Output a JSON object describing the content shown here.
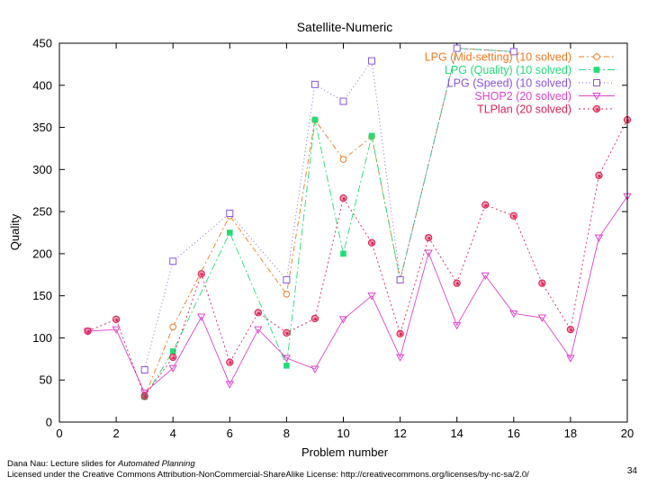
{
  "chart_data": {
    "type": "line",
    "title": "Satellite-Numeric",
    "xlabel": "Problem number",
    "ylabel": "Quality",
    "xlim": [
      0,
      20
    ],
    "ylim": [
      0,
      450
    ],
    "xticks": [
      0,
      2,
      4,
      6,
      8,
      10,
      12,
      14,
      16,
      18,
      20
    ],
    "yticks": [
      0,
      50,
      100,
      150,
      200,
      250,
      300,
      350,
      400,
      450
    ],
    "legend_position": "top-right",
    "series": [
      {
        "name": "LPG (Mid-setting) (10 solved)",
        "color": "#f07820",
        "marker": "circle-open",
        "dash": "6,3,2,3",
        "points": [
          [
            3,
            30
          ],
          [
            4,
            113
          ],
          [
            6,
            245
          ],
          [
            8,
            152
          ],
          [
            9,
            359
          ],
          [
            10,
            312
          ],
          [
            11,
            339
          ],
          [
            12,
            169
          ],
          [
            14,
            444
          ],
          [
            16,
            440
          ]
        ]
      },
      {
        "name": "LPG (Quality) (10 solved)",
        "color": "#22dd77",
        "marker": "square-filled",
        "dash": "8,3,2,3",
        "points": [
          [
            3,
            30
          ],
          [
            4,
            84
          ],
          [
            6,
            225
          ],
          [
            8,
            67
          ],
          [
            9,
            359
          ],
          [
            10,
            200
          ],
          [
            11,
            340
          ],
          [
            12,
            169
          ],
          [
            14,
            444
          ],
          [
            16,
            440
          ]
        ]
      },
      {
        "name": "LPG (Speed) (10 solved)",
        "color": "#8a55dd",
        "marker": "square-open",
        "dash": "1,3",
        "points": [
          [
            3,
            62
          ],
          [
            4,
            191
          ],
          [
            6,
            248
          ],
          [
            8,
            169
          ],
          [
            9,
            401
          ],
          [
            10,
            381
          ],
          [
            11,
            429
          ],
          [
            12,
            169
          ],
          [
            14,
            444
          ],
          [
            16,
            440
          ]
        ]
      },
      {
        "name": "SHOP2 (20 solved)",
        "color": "#dd44cc",
        "marker": "triangle-down",
        "dash": "",
        "points": [
          [
            1,
            108
          ],
          [
            2,
            110
          ],
          [
            3,
            35
          ],
          [
            4,
            64
          ],
          [
            5,
            125
          ],
          [
            6,
            45
          ],
          [
            7,
            110
          ],
          [
            8,
            76
          ],
          [
            9,
            63
          ],
          [
            10,
            122
          ],
          [
            11,
            150
          ],
          [
            12,
            77
          ],
          [
            13,
            201
          ],
          [
            14,
            115
          ],
          [
            15,
            174
          ],
          [
            16,
            129
          ],
          [
            17,
            124
          ],
          [
            18,
            76
          ],
          [
            19,
            219
          ],
          [
            20,
            268
          ]
        ]
      },
      {
        "name": "TLPlan (20 solved)",
        "color": "#dd2255",
        "marker": "circle-dot",
        "dash": "2,3",
        "points": [
          [
            1,
            108
          ],
          [
            2,
            122
          ],
          [
            3,
            31
          ],
          [
            4,
            77
          ],
          [
            5,
            176
          ],
          [
            6,
            71
          ],
          [
            7,
            130
          ],
          [
            8,
            106
          ],
          [
            9,
            123
          ],
          [
            10,
            266
          ],
          [
            11,
            213
          ],
          [
            12,
            105
          ],
          [
            13,
            219
          ],
          [
            14,
            165
          ],
          [
            15,
            258
          ],
          [
            16,
            245
          ],
          [
            17,
            165
          ],
          [
            18,
            110
          ],
          [
            19,
            293
          ],
          [
            20,
            359
          ]
        ]
      }
    ]
  },
  "footer": {
    "author": "Dana Nau: Lecture slides for ",
    "book": "Automated Planning",
    "license": "Licensed under the Creative Commons Attribution-NonCommercial-ShareAlike License: http://creativecommons.org/licenses/by-nc-sa/2.0/",
    "page_number": "34"
  }
}
